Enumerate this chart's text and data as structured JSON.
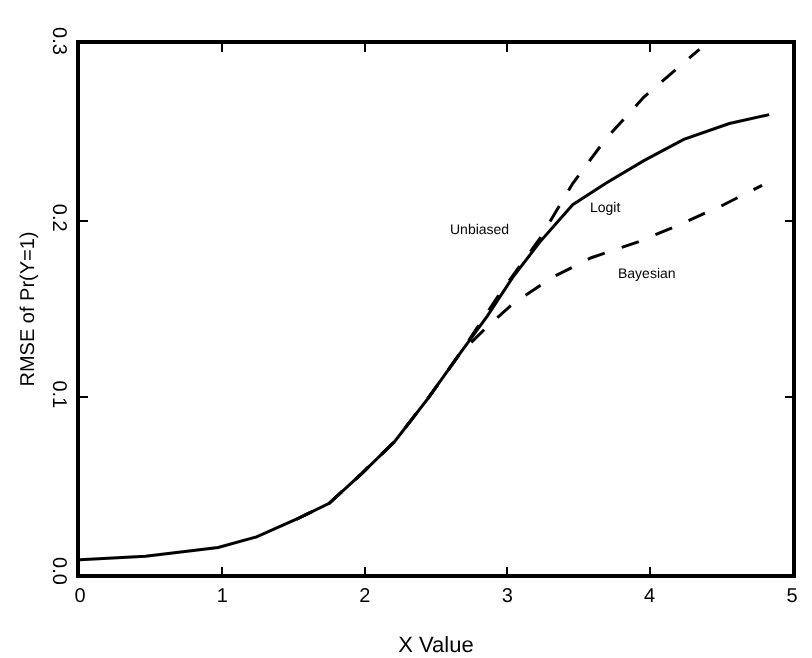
{
  "chart_data": {
    "type": "line",
    "xlabel": "X Value",
    "ylabel": "RMSE of Pr(Y=1)",
    "xlim": [
      0,
      5
    ],
    "ylim": [
      0,
      0.3
    ],
    "xticks": [
      0,
      1,
      2,
      3,
      4,
      5
    ],
    "yticks": [
      {
        "value": 0,
        "label": "0.0"
      },
      {
        "value": 0.1,
        "label": "0.1"
      },
      {
        "value": 0.2,
        "label": "0.2"
      },
      {
        "value": 0.3,
        "label": "0.3"
      }
    ],
    "grid": false,
    "legend": false,
    "marker": "none",
    "series": [
      {
        "name": "Logit",
        "color": "#000000",
        "line_style": "solid",
        "x": [
          0,
          0.46,
          0.97,
          1.24,
          1.52,
          1.75,
          1.98,
          2.21,
          2.44,
          2.67,
          2.86,
          3.04,
          3.23,
          3.46,
          3.69,
          3.96,
          4.24,
          4.56,
          4.84
        ],
        "values": [
          0.008,
          0.01,
          0.015,
          0.021,
          0.031,
          0.04,
          0.057,
          0.075,
          0.099,
          0.125,
          0.146,
          0.168,
          0.188,
          0.209,
          0.221,
          0.234,
          0.246,
          0.255,
          0.26
        ]
      },
      {
        "name": "Unbiased",
        "color": "#000000",
        "line_style": "dashed",
        "x": [
          1.52,
          1.75,
          1.98,
          2.21,
          2.44,
          2.67,
          2.95,
          3.23,
          3.46,
          3.69,
          3.96,
          4.35
        ],
        "values": [
          0.031,
          0.04,
          0.057,
          0.075,
          0.099,
          0.125,
          0.159,
          0.19,
          0.221,
          0.246,
          0.27,
          0.297
        ]
      },
      {
        "name": "Bayesian",
        "color": "#000000",
        "line_style": "dashed",
        "x": [
          1.52,
          1.75,
          1.98,
          2.21,
          2.44,
          2.67,
          2.86,
          3.04,
          3.32,
          3.59,
          3.92,
          4.19,
          4.52,
          4.79
        ],
        "values": [
          0.031,
          0.04,
          0.057,
          0.075,
          0.099,
          0.125,
          0.14,
          0.153,
          0.168,
          0.179,
          0.188,
          0.197,
          0.209,
          0.22
        ]
      }
    ]
  }
}
